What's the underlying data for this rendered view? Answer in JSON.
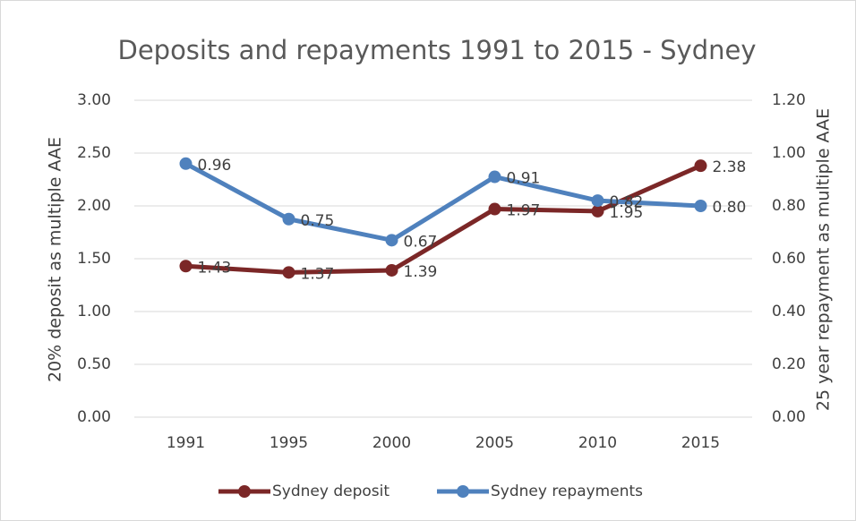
{
  "chart_data": {
    "type": "line",
    "title": "Deposits and repayments 1991 to 2015 - Sydney",
    "y_label": "20% deposit as multiple AAE",
    "y2_label": "25 year repayment as multiple AAE",
    "categories": [
      "1991",
      "1995",
      "2000",
      "2005",
      "2010",
      "2015"
    ],
    "series": [
      {
        "name": "Sydney deposit",
        "color": "#7b2727",
        "values": [
          1.43,
          1.37,
          1.39,
          1.97,
          1.95,
          2.38
        ],
        "value_labels": [
          "1.43",
          "1.37",
          "1.39",
          "1.97",
          "1.95",
          "2.38"
        ]
      },
      {
        "name": "Sydney repayments",
        "color": "#4f81bd",
        "axis": "y2",
        "values": [
          0.96,
          0.75,
          0.67,
          0.91,
          0.82,
          0.8
        ],
        "value_labels": [
          "0.96",
          "0.75",
          "0.67",
          "0.91",
          "0.82",
          "0.80"
        ]
      }
    ],
    "ylim": [
      0,
      3
    ],
    "yticks": [
      {
        "value": 0,
        "label": "0.00"
      },
      {
        "value": 0.5,
        "label": "0.50"
      },
      {
        "value": 1,
        "label": "1.00"
      },
      {
        "value": 1.5,
        "label": "1.50"
      },
      {
        "value": 2,
        "label": "2.00"
      },
      {
        "value": 2.5,
        "label": "2.50"
      },
      {
        "value": 3,
        "label": "3.00"
      }
    ],
    "y2lim": [
      0,
      1.2
    ],
    "y2ticks": [
      {
        "value": 0,
        "label": "0.00"
      },
      {
        "value": 0.2,
        "label": "0.20"
      },
      {
        "value": 0.4,
        "label": "0.40"
      },
      {
        "value": 0.6,
        "label": "0.60"
      },
      {
        "value": 0.8,
        "label": "0.80"
      },
      {
        "value": 1,
        "label": "1.00"
      },
      {
        "value": 1.2,
        "label": "1.20"
      }
    ],
    "grid": true,
    "legend": "bottom"
  }
}
